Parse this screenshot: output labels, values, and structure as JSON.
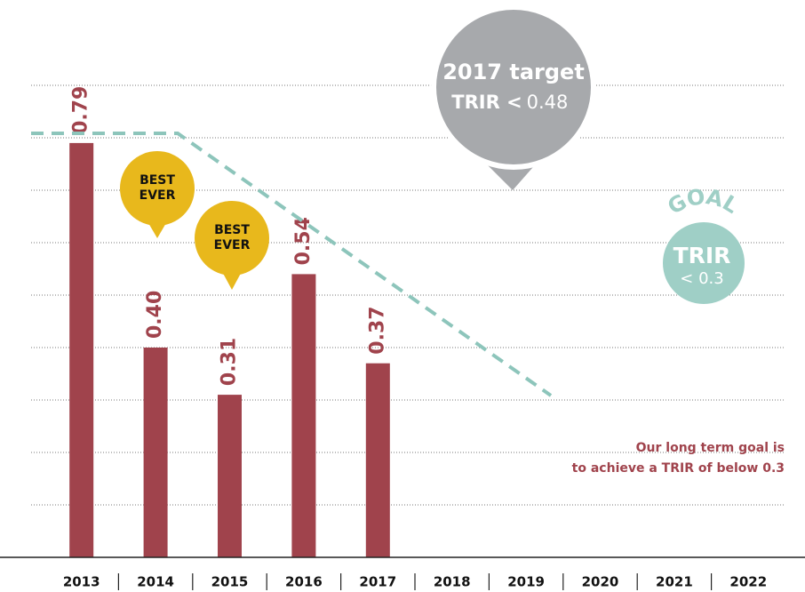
{
  "chart_data": {
    "type": "bar",
    "categories": [
      "2013",
      "2014",
      "2015",
      "2016",
      "2017",
      "2018",
      "2019",
      "2020",
      "2021",
      "2022"
    ],
    "values": [
      0.79,
      0.4,
      0.31,
      0.54,
      0.37,
      null,
      null,
      null,
      null,
      null
    ],
    "value_labels": [
      "0.79",
      "0.40",
      "0.31",
      "0.54",
      "0.37",
      null,
      null,
      null,
      null,
      null
    ],
    "color": "#a0434c",
    "ylim": [
      0,
      1
    ],
    "yticks": [
      0.1,
      0.2,
      0.3,
      0.4,
      0.5,
      0.6,
      0.7,
      0.8,
      0.9
    ],
    "grid": true,
    "annotations": {
      "best_ever_1": [
        "BEST",
        "EVER"
      ],
      "best_ever_2": [
        "BEST",
        "EVER"
      ],
      "target_title": "2017 target",
      "target_prefix": "TRIR <",
      "target_value": "0.48",
      "goal_word": "GOAL",
      "goal_trir": "TRIR",
      "goal_value": "< 0.3",
      "note": [
        "Our long term goal is",
        "to achieve a TRIR of below 0.3"
      ]
    }
  }
}
